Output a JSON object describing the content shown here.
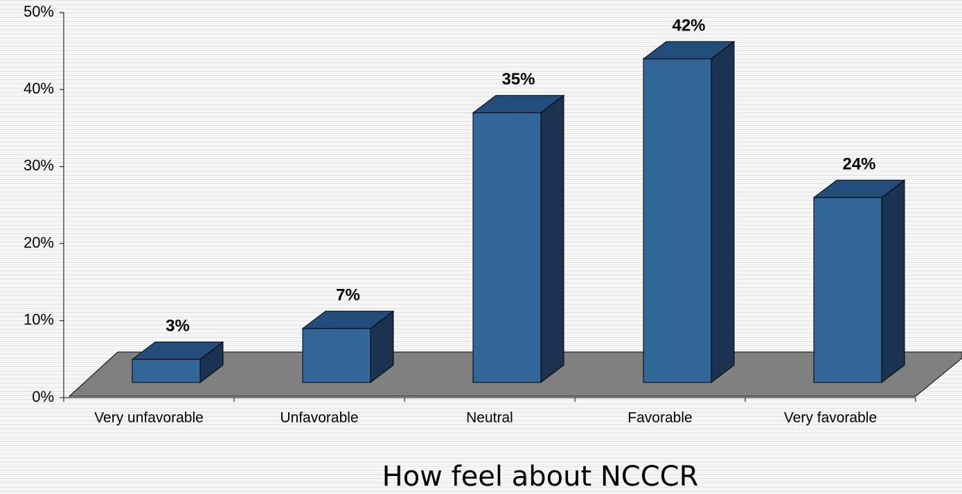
{
  "chart_data": {
    "type": "bar3d",
    "title": "How feel about NCCCR",
    "categories": [
      "Very unfavorable",
      "Unfavorable",
      "Neutral",
      "Favorable",
      "Very favorable"
    ],
    "values": [
      3,
      7,
      35,
      42,
      24
    ],
    "value_labels": [
      "3%",
      "7%",
      "35%",
      "42%",
      "24%"
    ],
    "color": "#336699",
    "ylim": [
      0,
      50
    ],
    "yticks": [
      {
        "value": 0,
        "label": "0%"
      },
      {
        "value": 10,
        "label": "10%"
      },
      {
        "value": 20,
        "label": "20%"
      },
      {
        "value": 30,
        "label": "30%"
      },
      {
        "value": 40,
        "label": "40%"
      },
      {
        "value": 50,
        "label": "50%"
      }
    ]
  }
}
